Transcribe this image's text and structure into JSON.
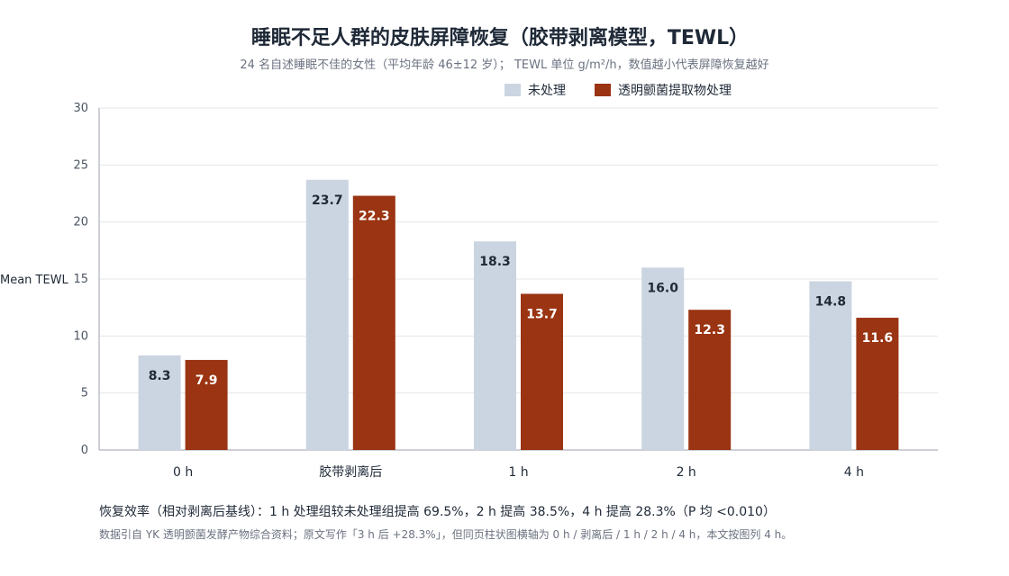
{
  "chart_data": {
    "type": "bar",
    "title": "睡眠不足人群的皮肤屏障恢复（胶带剥离模型，TEWL）",
    "subtitle": "24 名自述睡眠不佳的女性（平均年龄 46±12 岁）； TEWL 单位 g/m²/h，数值越小代表屏障恢复越好",
    "xlabel": "",
    "ylabel": "Mean TEWL",
    "ylim": [
      0,
      30
    ],
    "yticks": [
      0,
      5,
      10,
      15,
      20,
      25,
      30
    ],
    "categories": [
      "0 h",
      "胶带剥离后",
      "1 h",
      "2 h",
      "4 h"
    ],
    "series": [
      {
        "name": "未处理",
        "values": [
          8.3,
          23.7,
          18.3,
          16.0,
          14.8
        ],
        "labels": [
          "8.3",
          "23.7",
          "18.3",
          "16.0",
          "14.8"
        ],
        "color": "#cbd5e1",
        "label_color": "#1f2937"
      },
      {
        "name": "透明颤菌提取物处理",
        "values": [
          7.9,
          22.3,
          13.7,
          12.3,
          11.6
        ],
        "labels": [
          "7.9",
          "22.3",
          "13.7",
          "12.3",
          "11.6"
        ],
        "color": "#9a3412",
        "label_color": "#ffffff"
      }
    ],
    "grid": true,
    "legend": "top-right",
    "footnote": "恢复效率（相对剥离后基线）：1 h 处理组较未处理组提高 69.5%，2 h 提高 38.5%，4 h 提高 28.3%（P 均 <0.010）",
    "source": "数据引自 YK 透明颤菌发酵产物综合资料；原文写作「3 h 后 +28.3%」，但同页柱状图横轴为 0 h / 剥离后 / 1 h / 2 h / 4 h，本文按图列 4 h。"
  }
}
